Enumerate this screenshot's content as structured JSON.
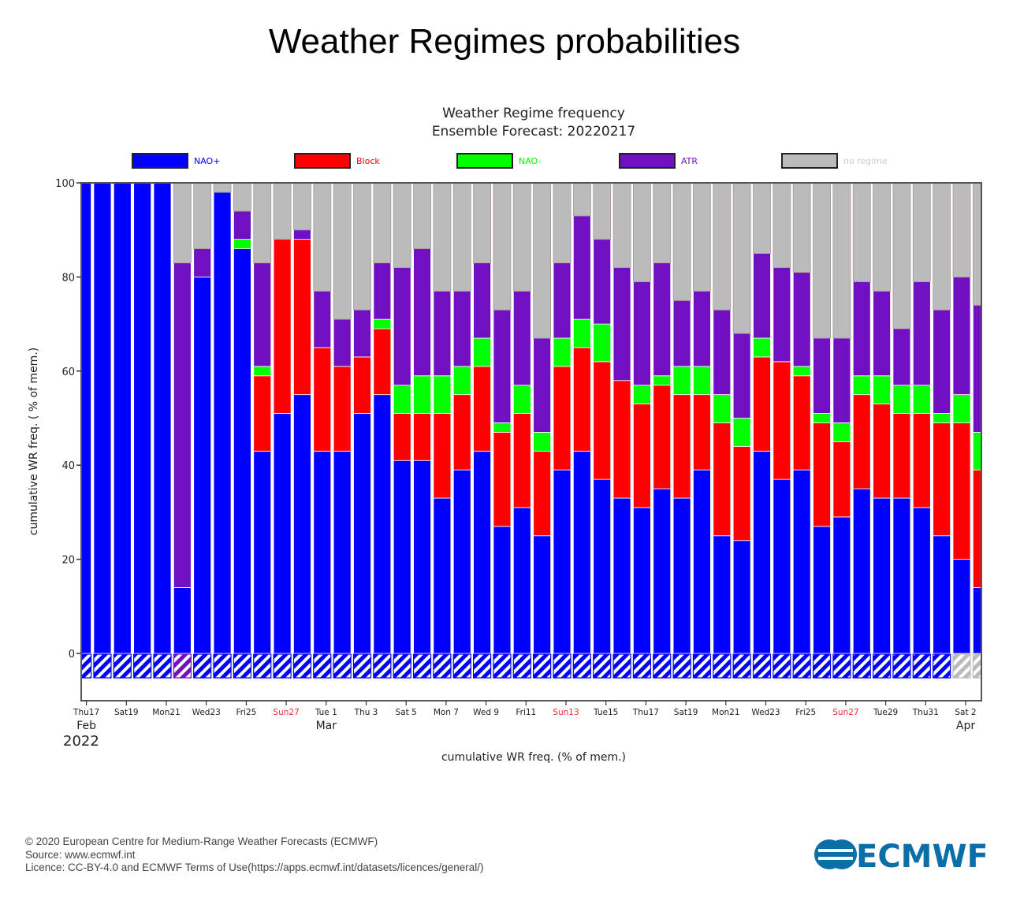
{
  "page": {
    "title": "Weather Regimes probabilities",
    "footer": {
      "copyright": "© 2020 European Centre for Medium-Range Weather Forecasts (ECMWF)",
      "source": "Source: www.ecmwf.int",
      "licence": "Licence: CC-BY-4.0 and ECMWF Terms of Use(https://apps.ecmwf.int/datasets/licences/general/)"
    },
    "logo_text": "ECMWF"
  },
  "chart_data": {
    "type": "bar",
    "stacked": true,
    "title": "Weather Regime frequency",
    "subtitle": "Ensemble Forecast: 20220217",
    "ylabel": "cumulative WR freq. ( % of mem.)",
    "xlabel": "cumulative WR freq. (% of mem.)",
    "ylim": [
      -10,
      100
    ],
    "yticks": [
      0,
      20,
      40,
      60,
      80,
      100
    ],
    "legend_position": "top",
    "x_start": "2022-02-17",
    "x_end": "2022-04-03",
    "xtick_labels": [
      {
        "label": "Thu17",
        "weekend": false
      },
      {
        "label": "Sat19",
        "weekend": false
      },
      {
        "label": "Mon21",
        "weekend": false
      },
      {
        "label": "Wed23",
        "weekend": false
      },
      {
        "label": "Fri25",
        "weekend": false
      },
      {
        "label": "Sun27",
        "weekend": true
      },
      {
        "label": "Tue 1",
        "weekend": false
      },
      {
        "label": "Thu 3",
        "weekend": false
      },
      {
        "label": "Sat 5",
        "weekend": false
      },
      {
        "label": "Mon 7",
        "weekend": false
      },
      {
        "label": "Wed 9",
        "weekend": false
      },
      {
        "label": "Fri11",
        "weekend": false
      },
      {
        "label": "Sun13",
        "weekend": true
      },
      {
        "label": "Tue15",
        "weekend": false
      },
      {
        "label": "Thu17",
        "weekend": false
      },
      {
        "label": "Sat19",
        "weekend": false
      },
      {
        "label": "Mon21",
        "weekend": false
      },
      {
        "label": "Wed23",
        "weekend": false
      },
      {
        "label": "Fri25",
        "weekend": false
      },
      {
        "label": "Sun27",
        "weekend": true
      },
      {
        "label": "Tue29",
        "weekend": false
      },
      {
        "label": "Thu31",
        "weekend": false
      },
      {
        "label": "Sat 2",
        "weekend": false
      }
    ],
    "month_labels": [
      {
        "label": "Feb",
        "day_index": 0
      },
      {
        "label": "Mar",
        "day_index": 12
      },
      {
        "label": "Apr",
        "day_index": 44
      }
    ],
    "year_label": "2022",
    "series": [
      {
        "name": "NAO+",
        "color": "#0000ff",
        "values": [
          100,
          100,
          100,
          100,
          100,
          14,
          80,
          98,
          86,
          43,
          51,
          55,
          43,
          43,
          51,
          55,
          41,
          41,
          33,
          39,
          43,
          27,
          31,
          25,
          39,
          43,
          37,
          33,
          31,
          35,
          33,
          39,
          25,
          24,
          43,
          37,
          39,
          27,
          29,
          35,
          33,
          33,
          31,
          25,
          20,
          14
        ]
      },
      {
        "name": "Block",
        "color": "#ff0000",
        "values": [
          0,
          0,
          0,
          0,
          0,
          0,
          0,
          0,
          0,
          16,
          37,
          33,
          22,
          18,
          12,
          14,
          10,
          10,
          18,
          16,
          18,
          20,
          20,
          18,
          22,
          22,
          25,
          25,
          22,
          22,
          22,
          16,
          24,
          20,
          20,
          25,
          20,
          22,
          16,
          20,
          20,
          18,
          20,
          24,
          29,
          25
        ]
      },
      {
        "name": "NAO-",
        "color": "#00ff00",
        "values": [
          0,
          0,
          0,
          0,
          0,
          0,
          0,
          0,
          2,
          2,
          0,
          0,
          0,
          0,
          0,
          2,
          6,
          8,
          8,
          6,
          6,
          2,
          6,
          4,
          6,
          6,
          8,
          0,
          4,
          2,
          6,
          6,
          6,
          6,
          4,
          0,
          2,
          2,
          4,
          4,
          6,
          6,
          6,
          2,
          6,
          8
        ]
      },
      {
        "name": "ATR",
        "color": "#7010c0",
        "values": [
          0,
          0,
          0,
          0,
          0,
          69,
          6,
          0,
          6,
          22,
          0,
          2,
          12,
          10,
          10,
          12,
          25,
          27,
          18,
          16,
          16,
          24,
          20,
          20,
          16,
          22,
          18,
          24,
          22,
          24,
          14,
          16,
          18,
          18,
          18,
          20,
          20,
          16,
          18,
          20,
          18,
          12,
          22,
          22,
          25,
          27
        ]
      },
      {
        "name": "no regime",
        "color": "#bbbbbb",
        "values": [
          0,
          0,
          0,
          0,
          0,
          17,
          14,
          2,
          6,
          17,
          12,
          10,
          23,
          29,
          27,
          17,
          18,
          14,
          23,
          23,
          17,
          27,
          23,
          33,
          17,
          7,
          12,
          18,
          21,
          17,
          25,
          23,
          27,
          32,
          15,
          18,
          19,
          33,
          33,
          21,
          23,
          31,
          21,
          27,
          20,
          26
        ]
      }
    ],
    "hatch_regime": [
      "NAO+",
      "NAO+",
      "NAO+",
      "NAO+",
      "NAO+",
      "ATR",
      "NAO+",
      "NAO+",
      "NAO+",
      "NAO+",
      "NAO+",
      "NAO+",
      "NAO+",
      "NAO+",
      "NAO+",
      "NAO+",
      "NAO+",
      "NAO+",
      "NAO+",
      "NAO+",
      "NAO+",
      "NAO+",
      "NAO+",
      "NAO+",
      "NAO+",
      "NAO+",
      "NAO+",
      "NAO+",
      "NAO+",
      "NAO+",
      "NAO+",
      "NAO+",
      "NAO+",
      "NAO+",
      "NAO+",
      "NAO+",
      "NAO+",
      "NAO+",
      "NAO+",
      "NAO+",
      "NAO+",
      "NAO+",
      "NAO+",
      "NAO+",
      "no regime",
      "no regime"
    ]
  }
}
